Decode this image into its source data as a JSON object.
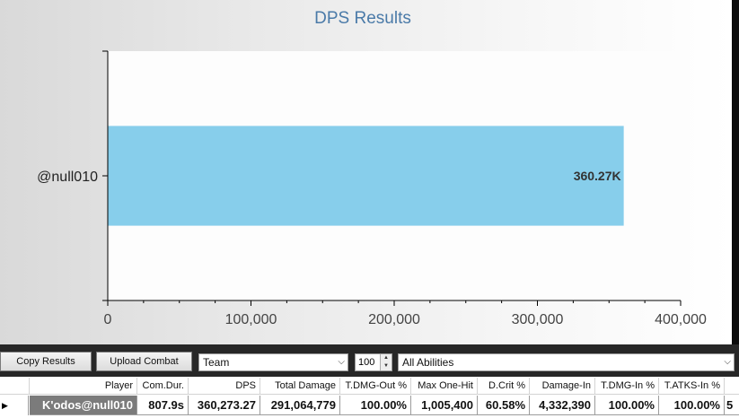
{
  "chart_data": {
    "type": "bar",
    "orientation": "horizontal",
    "title": "DPS Results",
    "categories": [
      "@null010"
    ],
    "values": [
      360273.27
    ],
    "data_labels": [
      "360.27K"
    ],
    "x_ticks": [
      "0",
      "100,000",
      "200,000",
      "300,000",
      "400,000"
    ],
    "xlim": [
      0,
      400000
    ],
    "xlabel": "",
    "ylabel": "",
    "bar_color": "#87ceeb",
    "grid": false
  },
  "toolbar": {
    "copy_label": "Copy Results",
    "upload_label": "Upload Combat",
    "filter_value": "Team",
    "count_value": "100",
    "abilities_value": "All Abilities"
  },
  "table": {
    "headers": [
      "Player",
      "Com.Dur.",
      "DPS",
      "Total Damage",
      "T.DMG-Out %",
      "Max One-Hit",
      "D.Crit %",
      "Damage-In",
      "T.DMG-In %",
      "T.ATKS-In %"
    ],
    "row": [
      "K'odos@null010",
      "807.9s",
      "360,273.27",
      "291,064,779",
      "100.00%",
      "1,005,400",
      "60.58%",
      "4,332,390",
      "100.00%",
      "100.00%"
    ],
    "overflow_cell": "5"
  },
  "colors": {
    "bar": "#87ceeb",
    "title": "#4a7aa8",
    "toolbar_bg": "#272727",
    "selected_cell": "#7b7b7b"
  }
}
